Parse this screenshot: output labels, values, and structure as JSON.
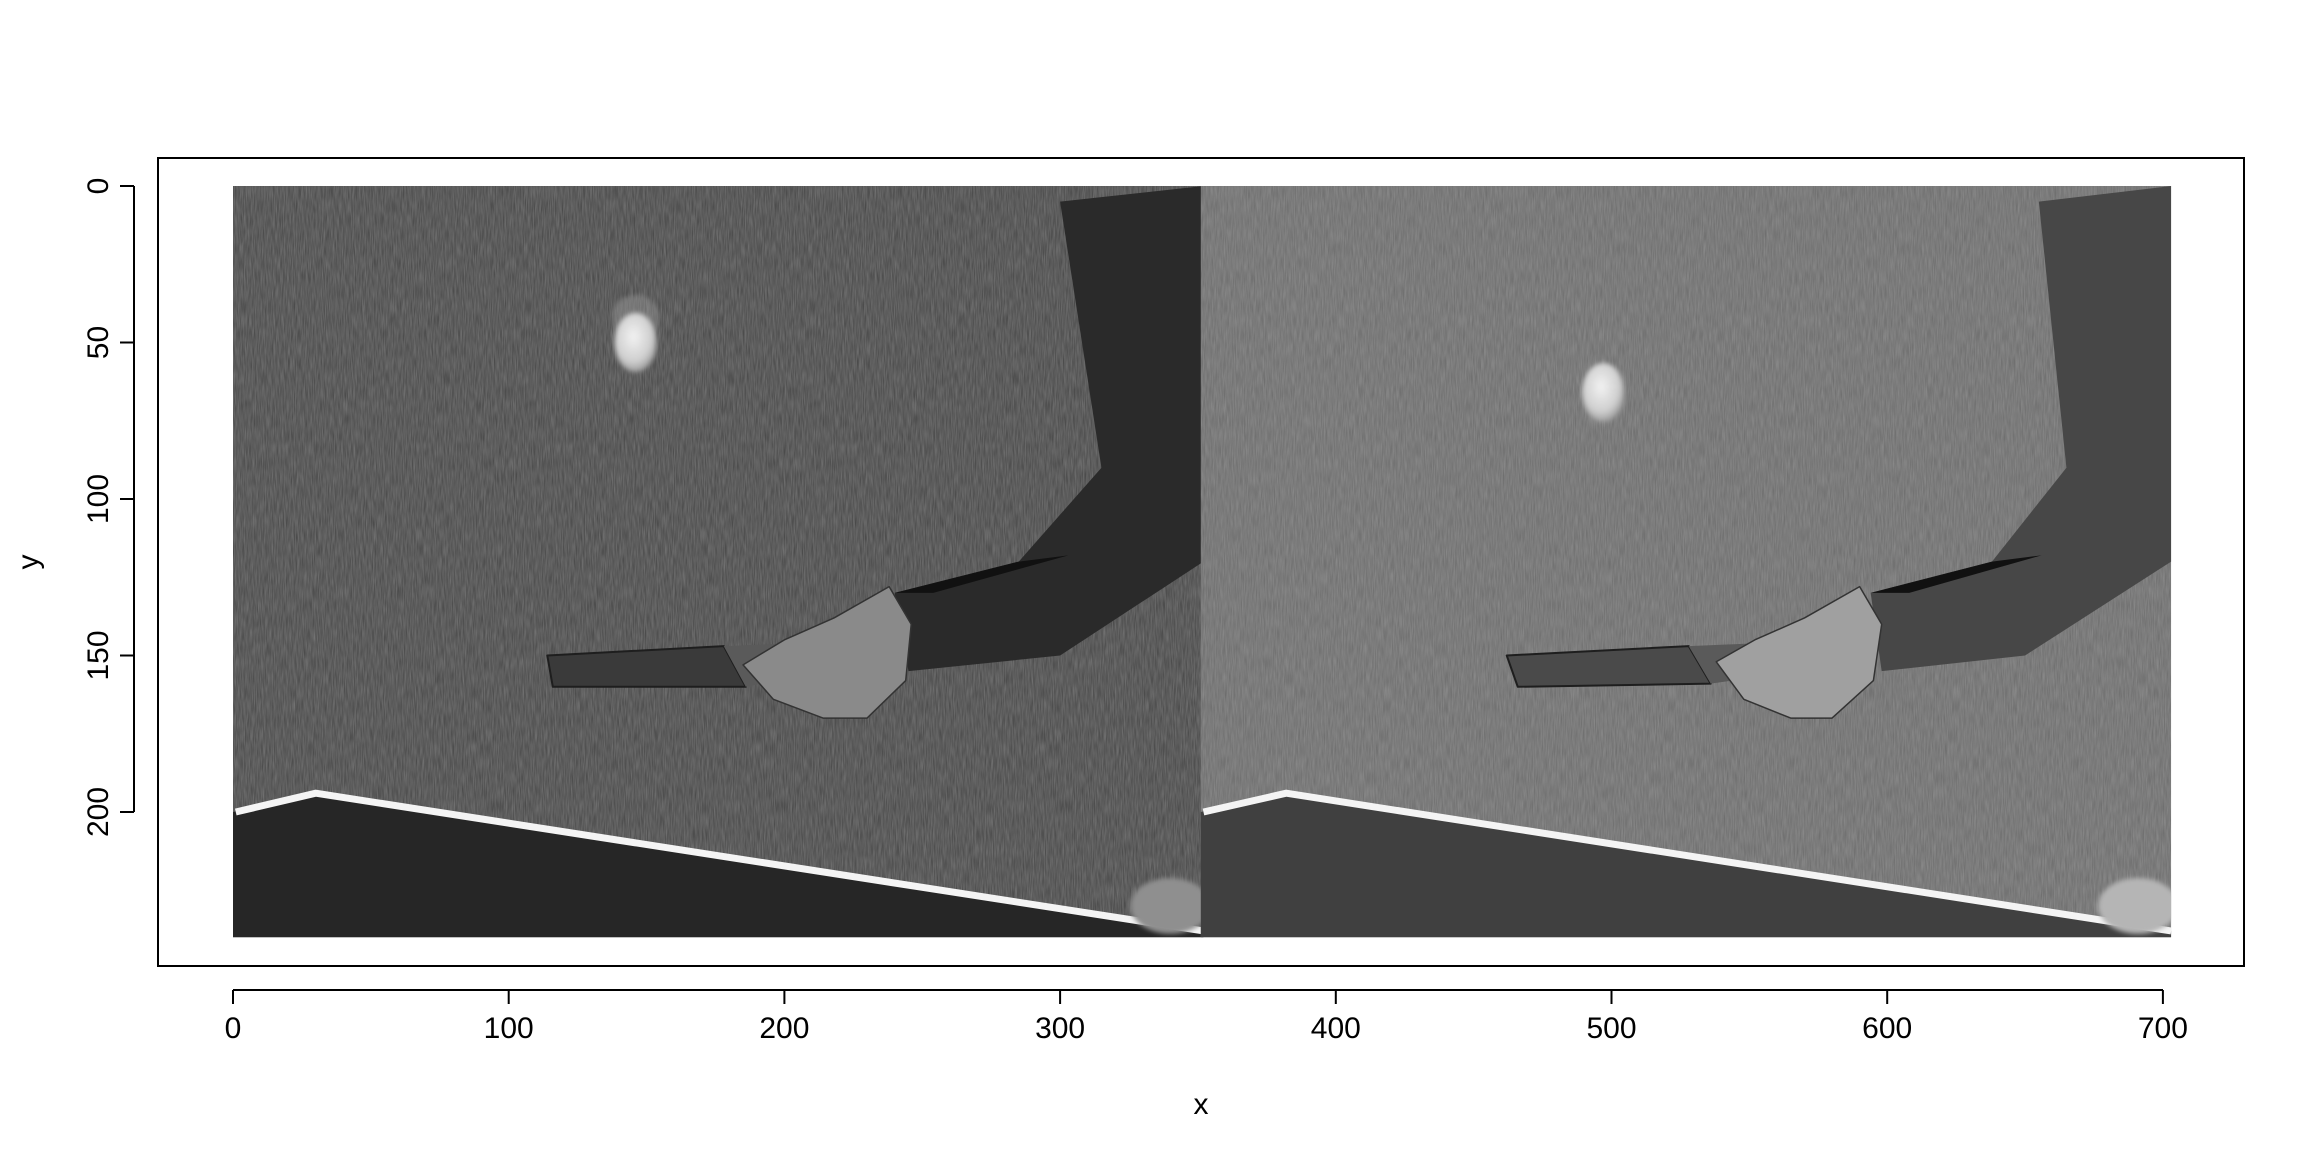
{
  "chart_data": {
    "type": "image",
    "xlabel": "x",
    "ylabel": "y",
    "xlim": [
      -28,
      730
    ],
    "ylim": [
      248,
      -9
    ],
    "xticks": [
      0,
      100,
      200,
      300,
      400,
      500,
      600,
      700
    ],
    "yticks": [
      0,
      50,
      100,
      150,
      200
    ],
    "grid": false,
    "panels": [
      {
        "x_range": [
          1,
          352
        ],
        "y_range": [
          1,
          240
        ],
        "paddle_rubber_quad": [
          [
            114,
            150
          ],
          [
            178,
            147
          ],
          [
            186,
            160
          ],
          [
            116,
            160
          ]
        ],
        "paddle_handle_quad": [
          [
            178,
            147
          ],
          [
            205,
            146
          ],
          [
            210,
            156
          ],
          [
            186,
            160
          ]
        ],
        "ball_center": [
          146,
          50
        ],
        "ball_radius": 9,
        "table_line_pts": [
          [
            1,
            200
          ],
          [
            30,
            194
          ],
          [
            352,
            238
          ]
        ],
        "person_right_edge_x": 352,
        "sleeve_poly": [
          [
            300,
            5
          ],
          [
            352,
            0
          ],
          [
            352,
            120
          ],
          [
            300,
            150
          ],
          [
            245,
            155
          ],
          [
            240,
            130
          ],
          [
            285,
            120
          ],
          [
            315,
            90
          ]
        ],
        "hand_poly": [
          [
            185,
            153
          ],
          [
            200,
            145
          ],
          [
            218,
            138
          ],
          [
            238,
            128
          ],
          [
            246,
            140
          ],
          [
            244,
            158
          ],
          [
            230,
            170
          ],
          [
            214,
            170
          ],
          [
            196,
            164
          ]
        ],
        "style": "dark"
      },
      {
        "x_range": [
          352,
          703
        ],
        "y_range": [
          1,
          240
        ],
        "paddle_rubber_quad": [
          [
            462,
            150
          ],
          [
            528,
            147
          ],
          [
            536,
            159
          ],
          [
            466,
            160
          ]
        ],
        "paddle_handle_quad": [
          [
            528,
            147
          ],
          [
            555,
            146
          ],
          [
            560,
            156
          ],
          [
            536,
            159
          ]
        ],
        "ball_center": [
          497,
          66
        ],
        "ball_radius": 9,
        "table_line_pts": [
          [
            352,
            200
          ],
          [
            382,
            194
          ],
          [
            703,
            238
          ]
        ],
        "person_right_edge_x": 703,
        "sleeve_poly": [
          [
            655,
            5
          ],
          [
            703,
            0
          ],
          [
            703,
            120
          ],
          [
            650,
            150
          ],
          [
            598,
            155
          ],
          [
            594,
            130
          ],
          [
            638,
            120
          ],
          [
            665,
            90
          ]
        ],
        "hand_poly": [
          [
            538,
            152
          ],
          [
            552,
            145
          ],
          [
            570,
            138
          ],
          [
            590,
            128
          ],
          [
            598,
            140
          ],
          [
            595,
            158
          ],
          [
            580,
            170
          ],
          [
            565,
            170
          ],
          [
            548,
            164
          ]
        ],
        "style": "light"
      }
    ]
  }
}
